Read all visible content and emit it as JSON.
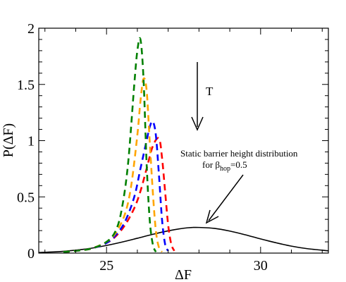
{
  "chart_data": {
    "type": "line",
    "xlabel": "ΔF",
    "ylabel": "P(ΔF)",
    "xlim": [
      22.8,
      32.2
    ],
    "ylim": [
      0,
      2
    ],
    "xticks": [
      25,
      30
    ],
    "xtick_labels": [
      "25",
      "30"
    ],
    "yticks": [
      0,
      0.5,
      1,
      1.5,
      2
    ],
    "ytick_labels": [
      "0",
      "0.5",
      "1",
      "1.5",
      "2"
    ],
    "grid": false,
    "annotations": {
      "temperature_label": "T",
      "static_line1": "Static barrier height distribution",
      "static_line2_prefix": "for β",
      "static_line2_sub": "hop",
      "static_line2_suffix": "=0.5"
    },
    "series": [
      {
        "color": "#000000",
        "style": "solid",
        "x": [
          22.8,
          23.5,
          24.0,
          24.5,
          25.0,
          25.5,
          26.0,
          26.5,
          27.0,
          27.5,
          27.8,
          28.0,
          28.5,
          29.0,
          29.5,
          30.0,
          30.5,
          31.0,
          31.5,
          32.2
        ],
        "y": [
          0.005,
          0.014,
          0.026,
          0.043,
          0.068,
          0.098,
          0.132,
          0.167,
          0.198,
          0.221,
          0.228,
          0.228,
          0.22,
          0.196,
          0.163,
          0.126,
          0.092,
          0.062,
          0.04,
          0.02
        ]
      },
      {
        "color": "#ff0000",
        "style": "dashed",
        "x": [
          23.6,
          24.0,
          24.5,
          25.0,
          25.3,
          25.6,
          25.9,
          26.1,
          26.3,
          26.5,
          26.7,
          26.8,
          26.9,
          27.0,
          27.1,
          27.2
        ],
        "y": [
          0.01,
          0.02,
          0.04,
          0.09,
          0.15,
          0.25,
          0.4,
          0.55,
          0.75,
          0.95,
          1.02,
          0.85,
          0.55,
          0.25,
          0.08,
          0.02
        ]
      },
      {
        "color": "#0000ff",
        "style": "dashed",
        "x": [
          23.6,
          24.0,
          24.5,
          25.0,
          25.3,
          25.6,
          25.9,
          26.1,
          26.3,
          26.4,
          26.5,
          26.6,
          26.7,
          26.8,
          26.9,
          27.0
        ],
        "y": [
          0.01,
          0.02,
          0.04,
          0.09,
          0.16,
          0.28,
          0.5,
          0.75,
          1.0,
          1.12,
          1.17,
          1.05,
          0.7,
          0.3,
          0.08,
          0.02
        ]
      },
      {
        "color": "#ffa500",
        "style": "dashed",
        "x": [
          23.6,
          24.0,
          24.5,
          25.0,
          25.3,
          25.6,
          25.8,
          26.0,
          26.1,
          26.2,
          26.3,
          26.4,
          26.5,
          26.6,
          26.7,
          26.8
        ],
        "y": [
          0.01,
          0.02,
          0.04,
          0.1,
          0.18,
          0.35,
          0.6,
          1.05,
          1.35,
          1.55,
          1.45,
          1.0,
          0.55,
          0.2,
          0.05,
          0.01
        ]
      },
      {
        "color": "#008000",
        "style": "dashed",
        "x": [
          23.6,
          24.0,
          24.5,
          25.0,
          25.3,
          25.5,
          25.7,
          25.9,
          26.0,
          26.1,
          26.2,
          26.3,
          26.4,
          26.5,
          26.6
        ],
        "y": [
          0.01,
          0.02,
          0.04,
          0.1,
          0.2,
          0.4,
          0.8,
          1.5,
          1.8,
          1.9,
          1.55,
          0.8,
          0.3,
          0.08,
          0.01
        ]
      }
    ]
  }
}
